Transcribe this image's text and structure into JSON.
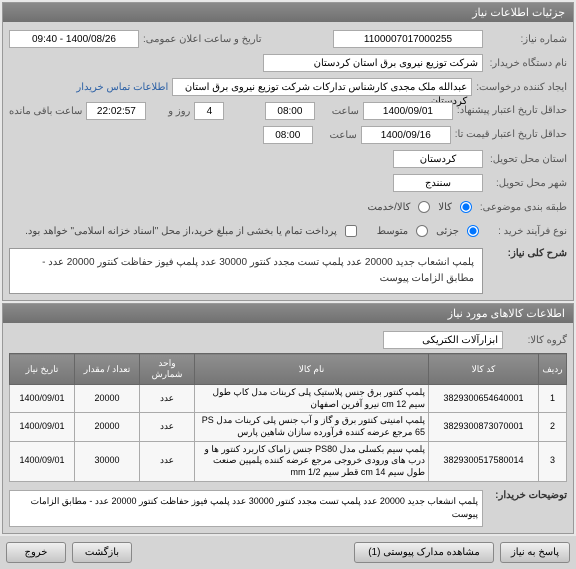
{
  "header": {
    "title": "جزئیات اطلاعات نیاز"
  },
  "info": {
    "need_no_lbl": "شماره نیاز:",
    "need_no": "1100007017000255",
    "announce_lbl": "تاریخ و ساعت اعلان عمومی:",
    "announce_val": "1400/08/26 - 09:40",
    "buyer_lbl": "نام دستگاه خریدار:",
    "buyer_val": "شرکت توزیع نیروی برق استان کردستان",
    "requester_lbl": "ایجاد کننده درخواست:",
    "requester_val": "عبدالله ملک مجدی کارشناس تدارکات شرکت توزیع نیروی برق استان کردستان",
    "contact_link": "اطلاعات تماس خریدار",
    "deadline_lbl": "حداقل تاریخ اعتبار\nپیشنهاد:",
    "deadline_date": "1400/09/01",
    "hour_lbl": "ساعت",
    "deadline_hour": "08:00",
    "days_lbl": "روز و",
    "days_val": "4",
    "time_remain": "22:02:57",
    "remain_lbl": "ساعت باقی مانده",
    "validity_lbl": "حداقل تاریخ اعتبار\nقیمت تا:",
    "validity_date": "1400/09/16",
    "validity_hour": "08:00",
    "province_lbl": "استان محل تحویل:",
    "province_val": "کردستان",
    "city_lbl": "شهر محل تحویل:",
    "city_val": "سنندج",
    "category_lbl": "طبقه بندی موضوعی:",
    "cat_goods": "کالا",
    "cat_service": "کالا/خدمت",
    "process_lbl": "نوع فرآیند خرید :",
    "process_partial": "جزئی",
    "process_medium": "متوسط",
    "settle_note": "پرداخت تمام یا بخشی از مبلغ خرید،از محل \"اسناد خزانه اسلامی\" خواهد بود."
  },
  "desc": {
    "title_lbl": "شرح کلی نیاز:",
    "text": "پلمپ انشعاب جدید 20000 عدد پلمپ تست مجدد کنتور 30000 عدد پلمپ فیوز حفاظت کنتور 20000 عدد - مطابق الزامات پیوست"
  },
  "goods": {
    "header": "اطلاعات کالاهای مورد نیاز",
    "group_lbl": "گروه کالا:",
    "group_val": "ابزارآلات الکتریکی",
    "columns": [
      "ردیف",
      "کد کالا",
      "نام کالا",
      "واحد شمارش",
      "تعداد / مقدار",
      "تاریخ نیاز"
    ],
    "rows": [
      [
        "1",
        "3829300654640001",
        "پلمپ کنتور برق جنس پلاستیک پلی کربنات مدل کاپ طول سیم cm 12 نیرو آفرین اصفهان",
        "عدد",
        "20000",
        "1400/09/01"
      ],
      [
        "2",
        "3829300873070001",
        "پلمپ امنیتی کنتور برق و گاز و آب جنس پلی کربنات مدل PS 65 مرجع عرضه کننده فرآورده سازان شاهین پارس",
        "عدد",
        "20000",
        "1400/09/01"
      ],
      [
        "3",
        "3829300517580014",
        "پلمپ سیم بکسلی مدل PS80 جنس زاماک کاربرد کنتور ها و درب های ورودی خروجی مرجع عرضه کننده پلمپین صنعت طول سیم cm 14 قطر سیم mm 1/2",
        "عدد",
        "30000",
        "1400/09/01"
      ]
    ]
  },
  "buyer_note": {
    "lbl": "توضیحات خریدار:",
    "text": "پلمپ انشعاب جدید 20000 عدد پلمپ تست مجدد کنتور 30000 عدد پلمپ فیوز حفاظت کنتور 20000 عدد - مطابق الزامات پیوست"
  },
  "buttons": {
    "reply": "پاسخ به نیاز",
    "attach": "مشاهده مدارک پیوستی (1)",
    "back": "بازگشت",
    "exit": "خروج"
  },
  "col_widths": [
    "28px",
    "110px",
    "auto",
    "55px",
    "65px",
    "65px"
  ]
}
